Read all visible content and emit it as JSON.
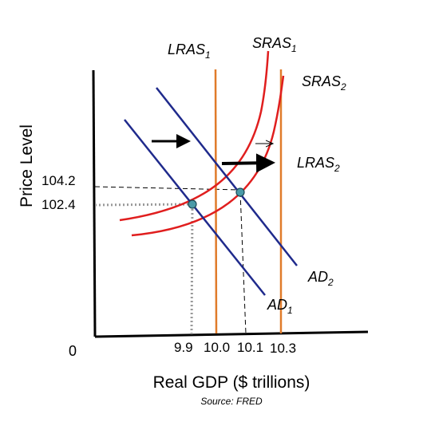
{
  "chart_data": {
    "type": "line",
    "title": "",
    "xlabel": "Real GDP ($ trillions)",
    "ylabel": "Price Level",
    "source": "Source: FRED",
    "origin_label": "0",
    "x_ticks": [
      "9.9",
      "10.0",
      "10.1",
      "10.3"
    ],
    "y_ticks": [
      "104.2",
      "102.4"
    ],
    "equilibria": [
      {
        "x": 9.9,
        "y": 102.4
      },
      {
        "x": 10.1,
        "y": 104.2
      }
    ],
    "curve_labels": {
      "lras1": {
        "base": "LRAS",
        "sub": "1"
      },
      "lras2": {
        "base": "LRAS",
        "sub": "2"
      },
      "sras1": {
        "base": "SRAS",
        "sub": "1"
      },
      "sras2": {
        "base": "SRAS",
        "sub": "2"
      },
      "ad1": {
        "base": "AD",
        "sub": "1"
      },
      "ad2": {
        "base": "AD",
        "sub": "2"
      }
    },
    "colors": {
      "lras": "#e07b2a",
      "sras": "#e01e1e",
      "ad": "#1f2a8c",
      "point": "#4a9aa8",
      "axis": "#000000"
    },
    "grid": false,
    "legend": "none"
  }
}
